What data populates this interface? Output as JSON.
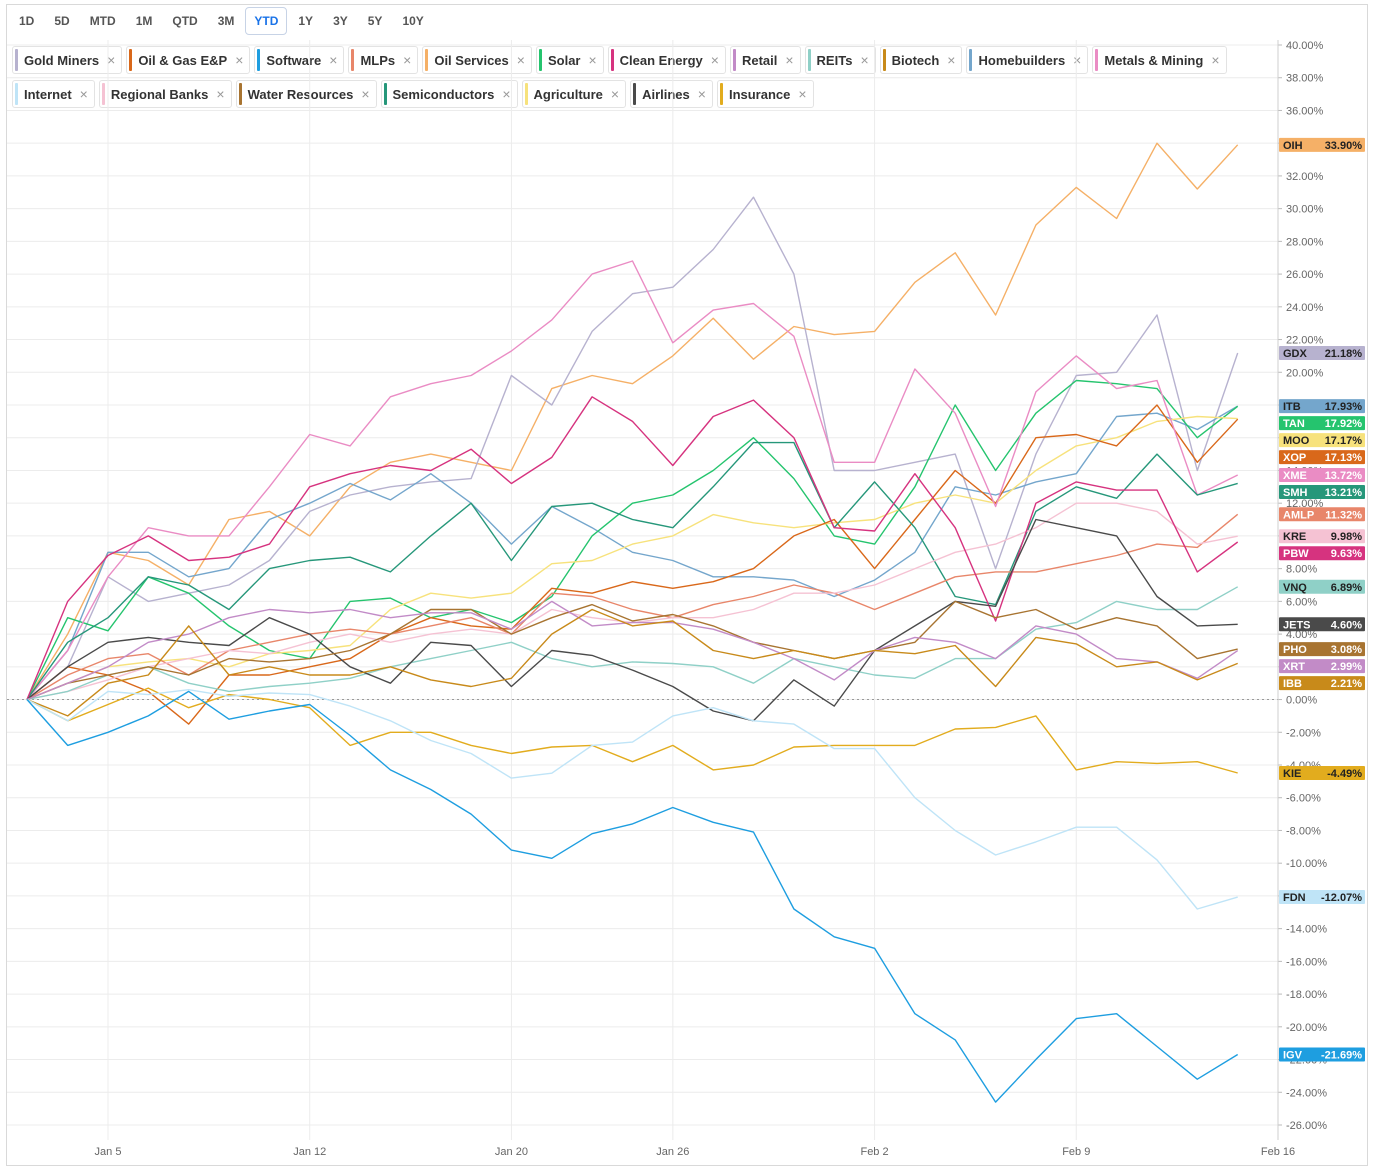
{
  "toolbar": {
    "ranges": [
      "1D",
      "5D",
      "MTD",
      "1M",
      "QTD",
      "3M",
      "YTD",
      "1Y",
      "3Y",
      "5Y",
      "10Y"
    ],
    "active": "YTD"
  },
  "legend": {
    "close_glyph": "×",
    "rows": [
      [
        {
          "name": "Gold Miners",
          "color": "#b7b2cf"
        },
        {
          "name": "Oil & Gas E&P",
          "color": "#d9681a"
        },
        {
          "name": "Software",
          "color": "#1e9ee0"
        },
        {
          "name": "MLPs",
          "color": "#e8866a"
        },
        {
          "name": "Oil Services",
          "color": "#f5b067"
        },
        {
          "name": "Solar",
          "color": "#25c46e"
        },
        {
          "name": "Clean Energy",
          "color": "#d6337f"
        },
        {
          "name": "Retail",
          "color": "#c28bc7"
        },
        {
          "name": "REITs",
          "color": "#8fd0c7"
        },
        {
          "name": "Biotech",
          "color": "#c88a1a"
        },
        {
          "name": "Homebuilders",
          "color": "#74a6cc"
        },
        {
          "name": "Metals & Mining",
          "color": "#ea8cc4"
        }
      ],
      [
        {
          "name": "Internet",
          "color": "#bfe4f7"
        },
        {
          "name": "Regional Banks",
          "color": "#f5c2d3"
        },
        {
          "name": "Water Resources",
          "color": "#a87431"
        },
        {
          "name": "Semiconductors",
          "color": "#26977a"
        },
        {
          "name": "Agriculture",
          "color": "#f7e27c"
        },
        {
          "name": "Airlines",
          "color": "#4a4a4a"
        },
        {
          "name": "Insurance",
          "color": "#e2ac1e"
        }
      ]
    ]
  },
  "chart_data": {
    "type": "line",
    "x": [
      "Dec 31",
      "Jan 2",
      "Jan 5",
      "Jan 6",
      "Jan 7",
      "Jan 8",
      "Jan 9",
      "Jan 12",
      "Jan 13",
      "Jan 14",
      "Jan 15",
      "Jan 16",
      "Jan 20",
      "Jan 21",
      "Jan 22",
      "Jan 23",
      "Jan 26",
      "Jan 27",
      "Jan 28",
      "Jan 29",
      "Jan 30",
      "Feb 2",
      "Feb 3",
      "Feb 4",
      "Feb 5",
      "Feb 6",
      "Feb 9",
      "Feb 10",
      "Feb 11",
      "Feb 12",
      "Feb 13"
    ],
    "x_tick_labels": [
      "Jan 5",
      "Jan 12",
      "Jan 20",
      "Jan 26",
      "Feb 2",
      "Feb 9",
      "Feb 16"
    ],
    "x_tick_index": [
      2.0,
      7.0,
      12.0,
      16.0,
      21.0,
      26.0,
      31.0
    ],
    "ylim": [
      -26,
      40
    ],
    "y_ticks": [
      "-26.00%",
      "-24.00%",
      "-22.00%",
      "-20.00%",
      "-18.00%",
      "-16.00%",
      "-14.00%",
      "-12.00%",
      "-10.00%",
      "-8.00%",
      "-6.00%",
      "-4.00%",
      "-2.00%",
      "0.00%",
      "2.00%",
      "4.00%",
      "6.00%",
      "8.00%",
      "10.00%",
      "12.00%",
      "14.00%",
      "16.00%",
      "18.00%",
      "20.00%",
      "22.00%",
      "24.00%",
      "26.00%",
      "28.00%",
      "30.00%",
      "32.00%",
      "34.00%",
      "36.00%",
      "38.00%",
      "40.00%"
    ],
    "grid": true,
    "baseline": 0,
    "series": [
      {
        "name": "Oil Services",
        "ticker": "OIH",
        "last_label": "33.90%",
        "color": "#f5b067",
        "values": [
          0.0,
          4.0,
          9.0,
          8.5,
          7.0,
          11.0,
          11.5,
          10.0,
          13.0,
          14.5,
          15.0,
          14.5,
          14.0,
          19.0,
          19.8,
          19.3,
          21.0,
          23.3,
          20.8,
          22.8,
          22.3,
          22.5,
          25.5,
          27.3,
          23.5,
          29.0,
          31.3,
          29.4,
          34.0,
          31.2,
          33.9
        ]
      },
      {
        "name": "Gold Miners",
        "ticker": "GDX",
        "last_label": "21.18%",
        "color": "#b7b2cf",
        "values": [
          0.0,
          2.0,
          7.5,
          6.0,
          6.5,
          7.0,
          8.5,
          11.5,
          12.5,
          13.0,
          13.3,
          13.5,
          19.8,
          18.0,
          22.5,
          24.8,
          25.2,
          27.5,
          30.7,
          26.0,
          14.0,
          14.0,
          14.5,
          15.0,
          8.0,
          15.0,
          19.8,
          20.0,
          23.5,
          14.0,
          21.18
        ]
      },
      {
        "name": "Homebuilders",
        "ticker": "ITB",
        "last_label": "17.93%",
        "color": "#74a6cc",
        "values": [
          0.0,
          3.0,
          9.0,
          9.0,
          7.5,
          8.0,
          11.0,
          12.0,
          13.2,
          12.2,
          13.8,
          12.0,
          9.5,
          11.8,
          10.5,
          9.0,
          8.5,
          7.5,
          7.5,
          7.3,
          6.3,
          7.3,
          9.0,
          13.0,
          12.5,
          13.3,
          13.8,
          17.3,
          17.5,
          16.5,
          17.93
        ]
      },
      {
        "name": "Solar",
        "ticker": "TAN",
        "last_label": "17.92%",
        "color": "#25c46e",
        "values": [
          0.0,
          5.0,
          4.2,
          7.5,
          6.5,
          4.5,
          3.0,
          2.5,
          6.0,
          6.2,
          5.0,
          5.5,
          4.7,
          6.3,
          10.0,
          12.0,
          12.5,
          14.0,
          16.0,
          13.5,
          10.0,
          9.5,
          13.0,
          18.0,
          14.0,
          17.5,
          19.5,
          19.3,
          19.0,
          16.0,
          17.92
        ]
      },
      {
        "name": "Agriculture",
        "ticker": "MOO",
        "last_label": "17.17%",
        "color": "#f7e27c",
        "values": [
          0.0,
          1.0,
          2.0,
          2.3,
          2.5,
          2.0,
          2.8,
          3.0,
          3.3,
          5.5,
          6.5,
          6.2,
          6.5,
          8.3,
          8.5,
          9.5,
          10.0,
          11.3,
          10.8,
          10.5,
          10.8,
          11.0,
          12.0,
          12.5,
          12.0,
          14.0,
          15.5,
          16.0,
          17.0,
          17.3,
          17.17
        ]
      },
      {
        "name": "Oil & Gas E&P",
        "ticker": "XOP",
        "last_label": "17.13%",
        "color": "#d9681a",
        "values": [
          0.0,
          2.0,
          1.5,
          0.5,
          -1.5,
          1.5,
          1.5,
          2.0,
          2.5,
          4.0,
          5.0,
          4.5,
          4.3,
          6.8,
          6.5,
          7.2,
          6.8,
          7.2,
          8.0,
          10.0,
          11.0,
          8.0,
          11.0,
          14.0,
          12.0,
          16.0,
          16.2,
          15.5,
          18.0,
          14.5,
          17.13
        ]
      },
      {
        "name": "Metals & Mining",
        "ticker": "XME",
        "last_label": "13.72%",
        "color": "#ea8cc4",
        "values": [
          0.0,
          3.0,
          7.5,
          10.5,
          10.0,
          10.0,
          13.0,
          16.2,
          15.5,
          18.5,
          19.3,
          19.8,
          21.3,
          23.2,
          26.0,
          26.8,
          21.8,
          23.8,
          24.2,
          22.2,
          14.5,
          14.5,
          20.2,
          17.5,
          11.8,
          18.8,
          21.0,
          19.0,
          19.5,
          12.5,
          13.72
        ]
      },
      {
        "name": "Semiconductors",
        "ticker": "SMH",
        "last_label": "13.21%",
        "color": "#26977a",
        "values": [
          0.0,
          3.5,
          5.0,
          7.5,
          7.0,
          5.5,
          8.0,
          8.5,
          8.7,
          7.8,
          10.0,
          12.0,
          8.5,
          11.8,
          12.0,
          11.0,
          10.5,
          13.0,
          15.7,
          15.7,
          10.5,
          13.3,
          10.5,
          6.3,
          5.8,
          11.5,
          13.0,
          12.3,
          15.0,
          12.5,
          13.21
        ]
      },
      {
        "name": "MLPs",
        "ticker": "AMLP",
        "last_label": "11.32%",
        "color": "#e8866a",
        "values": [
          0.0,
          1.5,
          2.5,
          2.8,
          1.5,
          3.0,
          3.5,
          4.0,
          4.3,
          4.0,
          4.5,
          5.0,
          4.0,
          6.5,
          6.3,
          5.5,
          5.0,
          5.8,
          6.3,
          7.0,
          6.5,
          5.5,
          6.5,
          7.5,
          7.8,
          7.8,
          8.3,
          8.8,
          9.5,
          9.3,
          11.32
        ]
      },
      {
        "name": "Regional Banks",
        "ticker": "KRE",
        "last_label": "9.98%",
        "color": "#f5c2d3",
        "values": [
          0.0,
          0.5,
          1.2,
          2.0,
          2.5,
          3.0,
          2.8,
          3.5,
          4.0,
          3.5,
          4.0,
          4.3,
          4.0,
          5.5,
          5.0,
          4.7,
          5.0,
          5.0,
          5.5,
          6.5,
          6.5,
          7.0,
          8.0,
          9.0,
          9.5,
          10.5,
          12.0,
          12.0,
          11.5,
          9.5,
          9.98
        ]
      },
      {
        "name": "Clean Energy",
        "ticker": "PBW",
        "last_label": "9.63%",
        "color": "#d6337f",
        "values": [
          0.0,
          6.0,
          8.8,
          10.0,
          8.5,
          8.7,
          9.5,
          13.0,
          13.8,
          14.3,
          14.0,
          15.3,
          13.2,
          14.8,
          18.5,
          17.0,
          14.3,
          17.3,
          18.3,
          16.0,
          10.5,
          10.3,
          13.8,
          10.5,
          4.8,
          12.0,
          13.3,
          12.8,
          12.8,
          7.8,
          9.63
        ]
      },
      {
        "name": "REITs",
        "ticker": "VNQ",
        "last_label": "6.89%",
        "color": "#8fd0c7",
        "values": [
          0.0,
          0.5,
          1.5,
          2.0,
          1.0,
          0.5,
          0.8,
          1.0,
          1.3,
          2.0,
          2.5,
          3.0,
          3.5,
          2.5,
          2.0,
          2.3,
          2.2,
          2.0,
          1.0,
          2.5,
          2.0,
          1.5,
          1.3,
          2.5,
          2.5,
          4.3,
          4.7,
          6.0,
          5.5,
          5.5,
          6.89
        ]
      },
      {
        "name": "Airlines",
        "ticker": "JETS",
        "last_label": "4.60%",
        "color": "#4a4a4a",
        "values": [
          0.0,
          2.0,
          3.5,
          3.8,
          3.5,
          3.3,
          5.0,
          4.0,
          2.0,
          1.0,
          3.5,
          3.3,
          0.8,
          3.0,
          2.7,
          1.8,
          0.8,
          -0.7,
          -1.3,
          1.2,
          -0.4,
          3.0,
          4.5,
          6.0,
          5.7,
          11.0,
          10.5,
          10.0,
          6.3,
          4.5,
          4.6
        ]
      },
      {
        "name": "Water Resources",
        "ticker": "PHO",
        "last_label": "3.08%",
        "color": "#a87431",
        "values": [
          0.0,
          1.0,
          1.5,
          2.0,
          1.5,
          2.5,
          2.3,
          2.5,
          3.0,
          4.0,
          5.5,
          5.5,
          4.0,
          5.0,
          5.8,
          4.8,
          5.2,
          4.5,
          3.5,
          3.0,
          2.5,
          3.0,
          3.5,
          6.0,
          5.0,
          5.5,
          4.3,
          5.0,
          4.5,
          2.5,
          3.08
        ]
      },
      {
        "name": "Retail",
        "ticker": "XRT",
        "last_label": "2.99%",
        "color": "#c28bc7",
        "values": [
          0.0,
          1.0,
          2.0,
          3.5,
          4.0,
          5.0,
          5.5,
          5.3,
          5.5,
          5.0,
          5.3,
          5.3,
          4.3,
          6.0,
          4.5,
          4.7,
          4.7,
          4.3,
          3.5,
          2.5,
          1.2,
          3.0,
          3.8,
          3.5,
          2.5,
          4.5,
          4.0,
          2.5,
          2.3,
          1.3,
          2.99
        ]
      },
      {
        "name": "Biotech",
        "ticker": "IBB",
        "last_label": "2.21%",
        "color": "#c88a1a",
        "values": [
          0.0,
          -1.0,
          1.0,
          1.5,
          4.5,
          1.5,
          2.0,
          1.5,
          1.5,
          2.0,
          1.2,
          0.8,
          1.3,
          4.0,
          5.5,
          4.5,
          4.8,
          3.0,
          2.5,
          3.0,
          2.5,
          3.0,
          2.8,
          3.3,
          0.8,
          3.8,
          3.4,
          2.0,
          2.3,
          1.2,
          2.21
        ]
      },
      {
        "name": "Insurance",
        "ticker": "KIE",
        "last_label": "-4.49%",
        "color": "#e2ac1e",
        "values": [
          0.0,
          -1.3,
          -0.3,
          0.7,
          -0.5,
          0.3,
          0.0,
          -0.5,
          -2.8,
          -2.0,
          -2.0,
          -2.8,
          -3.3,
          -2.9,
          -2.8,
          -3.8,
          -2.8,
          -4.3,
          -4.0,
          -2.9,
          -2.8,
          -2.8,
          -2.8,
          -1.8,
          -1.7,
          -1.0,
          -4.3,
          -3.8,
          -3.9,
          -3.8,
          -4.49
        ]
      },
      {
        "name": "Internet",
        "ticker": "FDN",
        "last_label": "-12.07%",
        "color": "#bfe4f7",
        "values": [
          0.0,
          -1.3,
          0.5,
          0.3,
          0.6,
          0.2,
          0.4,
          0.3,
          -0.4,
          -1.3,
          -2.5,
          -3.3,
          -4.8,
          -4.5,
          -2.8,
          -2.6,
          -1.0,
          -0.5,
          -1.3,
          -1.5,
          -3.0,
          -3.0,
          -6.0,
          -8.0,
          -9.5,
          -8.7,
          -7.8,
          -7.8,
          -9.8,
          -12.8,
          -12.07
        ]
      },
      {
        "name": "Software",
        "ticker": "IGV",
        "last_label": "-21.69%",
        "color": "#1e9ee0",
        "values": [
          0.0,
          -2.8,
          -2.0,
          -1.0,
          0.5,
          -1.2,
          -0.7,
          -0.3,
          -2.2,
          -4.3,
          -5.5,
          -7.0,
          -9.2,
          -9.7,
          -8.2,
          -7.6,
          -6.6,
          -7.5,
          -8.1,
          -12.8,
          -14.5,
          -15.2,
          -19.2,
          -20.8,
          -24.6,
          -22.0,
          -19.5,
          -19.2,
          -21.2,
          -23.2,
          -21.69
        ]
      }
    ]
  }
}
